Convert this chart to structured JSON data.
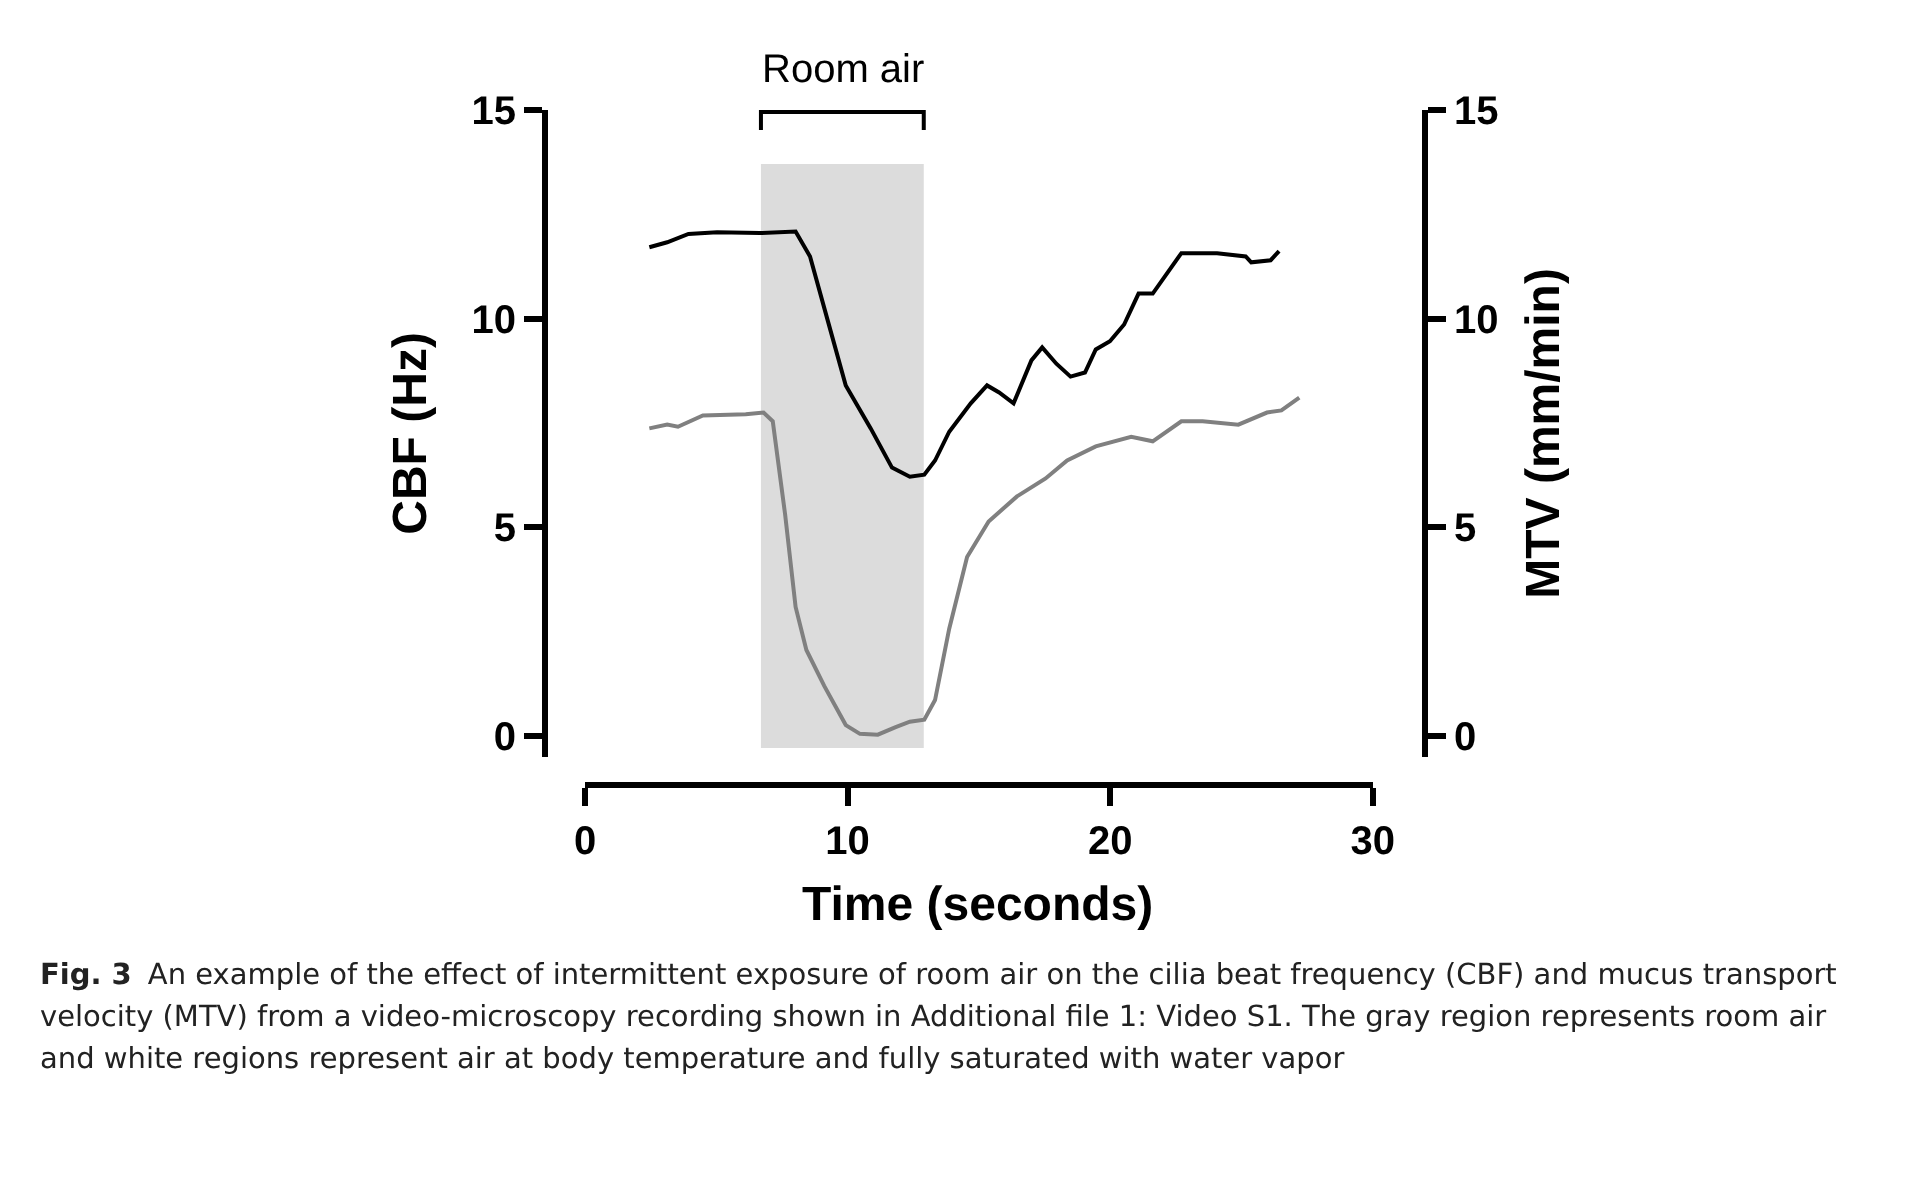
{
  "chart_data": {
    "type": "line",
    "xlabel": "Time (seconds)",
    "ylabel": "CBF (Hz)",
    "y2label": "MTV (mm/min)",
    "xlim": [
      0,
      30
    ],
    "xticks": [
      0,
      10,
      20,
      30
    ],
    "ylim": [
      -0.5,
      15
    ],
    "yticks": [
      0,
      5,
      10,
      15
    ],
    "y2lim": [
      -0.5,
      15
    ],
    "y2ticks": [
      0,
      5,
      10,
      15
    ],
    "grid": false,
    "marker": "none",
    "line_style": "solid",
    "bands": [
      {
        "axis": "x",
        "from": 6.7,
        "to": 12.9,
        "label": "Room air",
        "color": "#dcdcdc"
      }
    ],
    "series": [
      {
        "color": "#000000",
        "x": [
          2.45,
          3.13,
          3.94,
          5.03,
          6.66,
          8.02,
          8.57,
          9.25,
          9.93,
          10.88,
          11.69,
          12.37,
          12.92,
          13.33,
          13.87,
          14.69,
          15.31,
          15.77,
          16.32,
          17.0,
          17.41,
          17.95,
          18.49,
          19.04,
          19.45,
          19.99,
          20.53,
          21.08,
          21.62,
          22.71,
          24.07,
          25.16,
          25.37,
          26.11,
          26.43
        ],
        "values": [
          11.71,
          11.83,
          12.03,
          12.07,
          12.05,
          12.09,
          11.49,
          9.94,
          8.4,
          7.37,
          6.43,
          6.21,
          6.26,
          6.6,
          7.29,
          7.97,
          8.4,
          8.23,
          7.97,
          9.0,
          9.31,
          8.92,
          8.61,
          8.71,
          9.26,
          9.46,
          9.86,
          10.6,
          10.6,
          11.57,
          11.57,
          11.49,
          11.35,
          11.4,
          11.62
        ]
      },
      {
        "color": "#808080",
        "axis": "y2",
        "x": [
          2.45,
          3.13,
          3.54,
          4.49,
          6.12,
          6.8,
          7.15,
          7.62,
          8.02,
          8.43,
          9.11,
          9.93,
          10.47,
          11.15,
          11.83,
          12.37,
          12.92,
          13.33,
          13.87,
          14.55,
          15.37,
          16.45,
          17.54,
          18.36,
          19.45,
          20.8,
          21.62,
          22.71,
          23.52,
          24.88,
          25.97,
          26.52,
          27.2
        ],
        "values": [
          7.37,
          7.46,
          7.41,
          7.68,
          7.71,
          7.75,
          7.54,
          5.31,
          3.09,
          2.06,
          1.2,
          0.26,
          0.05,
          0.03,
          0.21,
          0.34,
          0.39,
          0.86,
          2.57,
          4.29,
          5.14,
          5.74,
          6.17,
          6.6,
          6.94,
          7.17,
          7.06,
          7.54,
          7.54,
          7.46,
          7.75,
          7.8,
          8.11
        ]
      }
    ],
    "annotations": [
      "Fig. 3",
      "An example of the effect of intermittent exposure of room air on the cilia beat frequency (CBF) and mucus transport velocity (MTV) from a video-microscopy recording shown in Additional file 1: Video S1. The gray region represents room air and white regions represent air at body temperature and fully saturated with water vapor"
    ]
  }
}
